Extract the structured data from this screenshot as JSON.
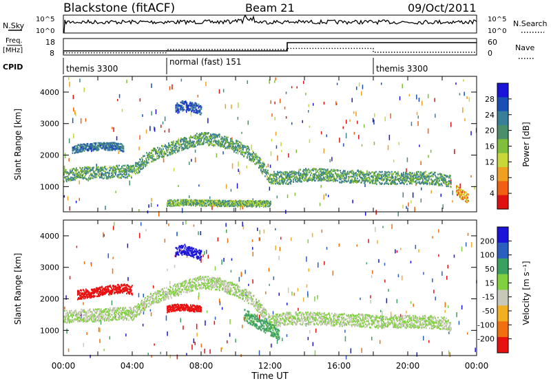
{
  "header": {
    "station": "Blackstone (fitACF)",
    "beam": "Beam 21",
    "date": "09/Oct/2011"
  },
  "top_panels": {
    "nsky_label": "N.Sky",
    "noise_ticks": [
      "10^5",
      "10^0"
    ],
    "nsearch_label": "N.Search",
    "freq_label": "Freq.",
    "freq_unit": "[MHz]",
    "freq_ticks": [
      "18",
      "8"
    ],
    "nave_label": "Nave",
    "nave_ticks": [
      "60",
      "0"
    ],
    "cpid_label": "CPID",
    "cpid_segments": [
      {
        "label": "themis 3300",
        "start_hour": 0,
        "end_hour": 6
      },
      {
        "label": "normal (fast) 151",
        "start_hour": 6,
        "end_hour": 18
      },
      {
        "label": "themis 3300",
        "start_hour": 18,
        "end_hour": 24
      }
    ],
    "freq_series": {
      "x_hours": [
        0,
        13,
        13,
        24
      ],
      "values_mhz": [
        10.5,
        10.5,
        15.5,
        15.5
      ]
    },
    "nave_series": {
      "x_hours": [
        0,
        6,
        6,
        13,
        13,
        18,
        18,
        24
      ],
      "values": [
        8,
        8,
        20,
        20,
        24,
        24,
        10,
        10
      ]
    }
  },
  "chart_data": [
    {
      "type": "heatmap",
      "panel": "power",
      "ylabel": "Slant Range [km]",
      "ylim": [
        200,
        4500
      ],
      "xlim_hours": [
        0,
        24
      ],
      "yticks": [
        "1000",
        "2000",
        "3000",
        "4000"
      ],
      "colorbar": {
        "label": "Power [dB]",
        "ticks": [
          "28",
          "24",
          "20",
          "16",
          "12",
          "8",
          "4"
        ],
        "colors": [
          "#1a14d8",
          "#1a4fb3",
          "#3a7f9a",
          "#4a8f6a",
          "#7fbf3a",
          "#c8d838",
          "#f0a020",
          "#f06010",
          "#e01010"
        ]
      },
      "bands": [
        {
          "x_hours": [
            0,
            1,
            2,
            3,
            4,
            5,
            6,
            7,
            8,
            9,
            10,
            11,
            12,
            13,
            14,
            15,
            16,
            17,
            18,
            19,
            20,
            21,
            22,
            22.5
          ],
          "center_km": [
            1350,
            1450,
            1450,
            1500,
            1500,
            2000,
            2200,
            2400,
            2550,
            2500,
            2300,
            2000,
            1300,
            1300,
            1400,
            1400,
            1350,
            1350,
            1300,
            1300,
            1300,
            1300,
            1250,
            1200
          ],
          "width_km": 250,
          "level_db": 12
        },
        {
          "x_hours": [
            0.5,
            1,
            2,
            3,
            3.5
          ],
          "center_km": [
            2200,
            2250,
            2300,
            2300,
            2250
          ],
          "width_km": 150,
          "level_db": 8
        },
        {
          "x_hours": [
            6.5,
            7,
            7.5,
            8
          ],
          "center_km": [
            3500,
            3600,
            3550,
            3450
          ],
          "width_km": 200,
          "level_db": 6
        },
        {
          "x_hours": [
            6,
            7,
            8,
            12
          ],
          "center_km": [
            500,
            520,
            500,
            480
          ],
          "width_km": 120,
          "level_db": 14
        },
        {
          "x_hours": [
            22.8,
            23.2,
            23.5
          ],
          "center_km": [
            900,
            750,
            650
          ],
          "width_km": 200,
          "level_db": 22
        }
      ]
    },
    {
      "type": "heatmap",
      "panel": "velocity",
      "ylabel": "Slant Range [km]",
      "xlabel": "Time UT",
      "ylim": [
        200,
        4500
      ],
      "xlim_hours": [
        0,
        24
      ],
      "yticks": [
        "1000",
        "2000",
        "3000",
        "4000"
      ],
      "xticks": [
        "00:00",
        "04:00",
        "08:00",
        "12:00",
        "16:00",
        "20:00",
        "00:00"
      ],
      "colorbar": {
        "label": "Velocity [m s⁻¹]",
        "ticks": [
          "200",
          "100",
          "50",
          "15",
          "-15",
          "-50",
          "-100",
          "-200"
        ],
        "colors": [
          "#1a14d8",
          "#2a5fc0",
          "#3aa060",
          "#80d040",
          "#c8c8b8",
          "#f0b020",
          "#f07010",
          "#e81010"
        ]
      },
      "bands": [
        {
          "x_hours": [
            0,
            1,
            2,
            3,
            4,
            5,
            6,
            7,
            8,
            9,
            10,
            11,
            12,
            13,
            14,
            15,
            16,
            17,
            18,
            19,
            20,
            21,
            22,
            22.5
          ],
          "center_km": [
            1450,
            1500,
            1500,
            1550,
            1550,
            2000,
            2200,
            2400,
            2550,
            2500,
            2300,
            2000,
            1300,
            1400,
            1400,
            1400,
            1350,
            1350,
            1300,
            1300,
            1300,
            1300,
            1250,
            1200
          ],
          "width_km": 250,
          "velocity": 0
        },
        {
          "x_hours": [
            0.8,
            1.5,
            2.5,
            3.5,
            4
          ],
          "center_km": [
            2150,
            2200,
            2300,
            2350,
            2300
          ],
          "width_km": 180,
          "velocity": -200
        },
        {
          "x_hours": [
            6.5,
            7,
            7.5,
            8
          ],
          "center_km": [
            3500,
            3600,
            3500,
            3400
          ],
          "width_km": 200,
          "velocity": 200
        },
        {
          "x_hours": [
            6,
            6.5,
            7,
            8
          ],
          "center_km": [
            1700,
            1750,
            1750,
            1700
          ],
          "width_km": 130,
          "velocity": -200
        },
        {
          "x_hours": [
            10.5,
            11.5,
            12.5
          ],
          "center_km": [
            1500,
            1200,
            900
          ],
          "width_km": 250,
          "velocity": 40
        }
      ]
    }
  ]
}
